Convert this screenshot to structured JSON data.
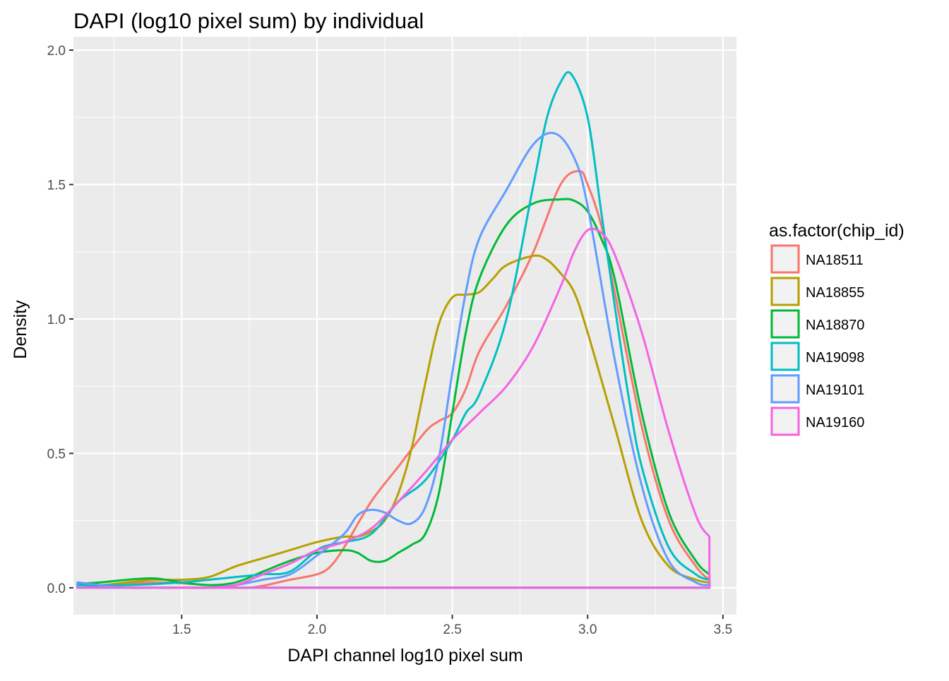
{
  "chart_data": {
    "type": "line",
    "title": "DAPI (log10 pixel sum) by individual",
    "xlabel": "DAPI channel log10 pixel sum",
    "ylabel": "Density",
    "xlim": [
      1.1,
      3.55
    ],
    "ylim": [
      -0.1,
      2.05
    ],
    "x_ticks": [
      1.5,
      2.0,
      2.5,
      3.0,
      3.5
    ],
    "x_tick_labels": [
      "1.5",
      "2.0",
      "2.5",
      "3.0",
      "3.5"
    ],
    "y_ticks": [
      0.0,
      0.5,
      1.0,
      1.5,
      2.0
    ],
    "y_tick_labels": [
      "0.0",
      "0.5",
      "1.0",
      "1.5",
      "2.0"
    ],
    "grid": true,
    "panel_background": "#ebebeb",
    "legend": {
      "title": "as.factor(chip_id)",
      "position": "right"
    },
    "series": [
      {
        "name": "NA18511",
        "color": "#F8766D",
        "x": [
          1.115,
          1.2,
          1.4,
          1.6,
          1.75,
          1.9,
          2.0,
          2.05,
          2.1,
          2.2,
          2.3,
          2.4,
          2.45,
          2.5,
          2.55,
          2.6,
          2.7,
          2.8,
          2.9,
          2.97,
          3.0,
          3.05,
          3.1,
          3.2,
          3.3,
          3.4,
          3.45
        ],
        "y": [
          0.015,
          0.005,
          0.02,
          0.01,
          0.0,
          0.03,
          0.05,
          0.08,
          0.15,
          0.32,
          0.45,
          0.58,
          0.62,
          0.65,
          0.74,
          0.88,
          1.05,
          1.25,
          1.5,
          1.55,
          1.5,
          1.35,
          1.1,
          0.6,
          0.25,
          0.08,
          0.03
        ]
      },
      {
        "name": "NA18855",
        "color": "#B79F00",
        "x": [
          1.115,
          1.2,
          1.3,
          1.4,
          1.5,
          1.6,
          1.7,
          1.8,
          1.9,
          2.0,
          2.1,
          2.15,
          2.2,
          2.25,
          2.3,
          2.35,
          2.4,
          2.45,
          2.5,
          2.55,
          2.6,
          2.65,
          2.7,
          2.8,
          2.85,
          2.9,
          2.95,
          3.0,
          3.1,
          3.2,
          3.3,
          3.4,
          3.45
        ],
        "y": [
          0.015,
          0.01,
          0.02,
          0.03,
          0.03,
          0.04,
          0.08,
          0.11,
          0.14,
          0.17,
          0.19,
          0.19,
          0.21,
          0.25,
          0.35,
          0.52,
          0.76,
          0.98,
          1.08,
          1.09,
          1.1,
          1.15,
          1.2,
          1.235,
          1.22,
          1.17,
          1.1,
          0.95,
          0.6,
          0.25,
          0.08,
          0.03,
          0.02
        ]
      },
      {
        "name": "NA18870",
        "color": "#00BA38",
        "x": [
          1.115,
          1.2,
          1.3,
          1.4,
          1.5,
          1.6,
          1.7,
          1.8,
          1.9,
          2.0,
          2.1,
          2.15,
          2.2,
          2.25,
          2.3,
          2.35,
          2.4,
          2.45,
          2.5,
          2.55,
          2.6,
          2.7,
          2.8,
          2.9,
          2.95,
          3.0,
          3.05,
          3.1,
          3.2,
          3.3,
          3.4,
          3.45
        ],
        "y": [
          0.015,
          0.02,
          0.03,
          0.035,
          0.02,
          0.01,
          0.02,
          0.06,
          0.1,
          0.13,
          0.14,
          0.13,
          0.1,
          0.1,
          0.13,
          0.16,
          0.2,
          0.35,
          0.65,
          0.95,
          1.15,
          1.35,
          1.43,
          1.445,
          1.44,
          1.4,
          1.3,
          1.15,
          0.65,
          0.28,
          0.1,
          0.05
        ]
      },
      {
        "name": "NA19098",
        "color": "#00BFC4",
        "x": [
          1.115,
          1.3,
          1.5,
          1.6,
          1.7,
          1.8,
          1.9,
          2.0,
          2.05,
          2.1,
          2.2,
          2.3,
          2.4,
          2.5,
          2.55,
          2.6,
          2.7,
          2.8,
          2.85,
          2.9,
          2.94,
          3.0,
          3.05,
          3.1,
          3.15,
          3.2,
          3.3,
          3.4,
          3.45
        ],
        "y": [
          0.01,
          0.01,
          0.02,
          0.03,
          0.04,
          0.05,
          0.06,
          0.14,
          0.16,
          0.17,
          0.2,
          0.32,
          0.4,
          0.55,
          0.65,
          0.72,
          1.0,
          1.5,
          1.75,
          1.88,
          1.91,
          1.75,
          1.4,
          1.05,
          0.72,
          0.45,
          0.15,
          0.05,
          0.03
        ]
      },
      {
        "name": "NA19101",
        "color": "#619CFF",
        "x": [
          1.115,
          1.2,
          1.3,
          1.4,
          1.5,
          1.6,
          1.7,
          1.8,
          1.9,
          2.0,
          2.1,
          2.15,
          2.2,
          2.25,
          2.3,
          2.35,
          2.4,
          2.45,
          2.5,
          2.55,
          2.6,
          2.7,
          2.8,
          2.88,
          2.95,
          3.0,
          3.1,
          3.2,
          3.3,
          3.4,
          3.45
        ],
        "y": [
          0.02,
          0.01,
          0.0,
          0.0,
          0.0,
          0.0,
          0.01,
          0.03,
          0.05,
          0.12,
          0.2,
          0.27,
          0.29,
          0.28,
          0.25,
          0.24,
          0.3,
          0.48,
          0.8,
          1.1,
          1.3,
          1.48,
          1.65,
          1.69,
          1.6,
          1.42,
          0.85,
          0.38,
          0.1,
          0.02,
          0.01
        ]
      },
      {
        "name": "NA19160",
        "color": "#F564E3",
        "x": [
          1.115,
          1.3,
          1.4,
          1.5,
          1.6,
          1.7,
          1.8,
          1.9,
          2.0,
          2.1,
          2.2,
          2.3,
          2.4,
          2.5,
          2.6,
          2.7,
          2.8,
          2.9,
          2.95,
          3.0,
          3.05,
          3.1,
          3.2,
          3.3,
          3.4,
          3.45
        ],
        "y": [
          0.0,
          0.0,
          0.0,
          0.0,
          0.0,
          0.01,
          0.05,
          0.09,
          0.14,
          0.17,
          0.22,
          0.32,
          0.43,
          0.55,
          0.65,
          0.75,
          0.9,
          1.12,
          1.25,
          1.33,
          1.32,
          1.24,
          0.95,
          0.58,
          0.27,
          0.19
        ]
      }
    ]
  }
}
